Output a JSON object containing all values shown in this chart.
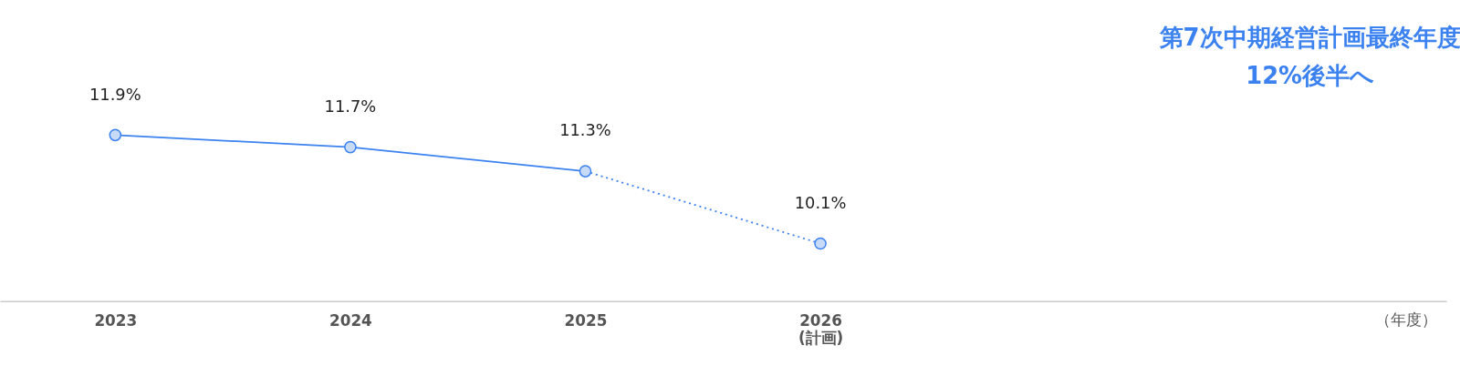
{
  "chart_data": {
    "type": "line",
    "categories": [
      "2023",
      "2024",
      "2025",
      "2026\n(計画)"
    ],
    "series": [
      {
        "color": "#3b82f0",
        "values": [
          11.9,
          11.7,
          11.3,
          null
        ],
        "value_labels": [
          "11.9%",
          "11.7%",
          "11.3%",
          null
        ],
        "line_style": "solid"
      },
      {
        "color": "#3b82f0",
        "values": [
          null,
          null,
          11.3,
          10.1
        ],
        "value_labels": [
          null,
          null,
          null,
          "10.1%"
        ],
        "line_style": "dotted"
      }
    ],
    "marker": "circle",
    "annotations": [
      "第7次中期経営計画最終年度\n12%後半へ",
      "（年度）"
    ]
  }
}
